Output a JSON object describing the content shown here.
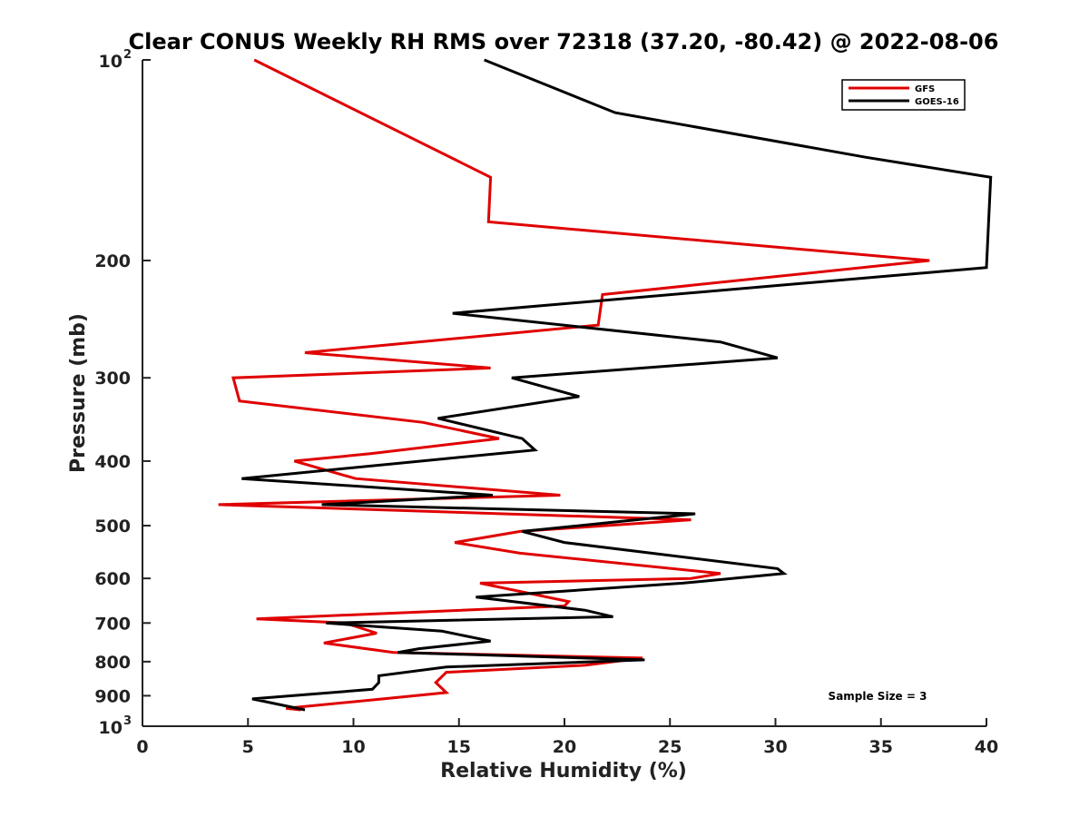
{
  "chart_data": {
    "type": "line",
    "title": "Clear CONUS Weekly RH RMS over 72318 (37.20, -80.42) @ 2022-08-06",
    "xlabel": "Relative Humidity (%)",
    "ylabel": "Pressure (mb)",
    "xlim": [
      0,
      40
    ],
    "ylim": [
      100,
      1000
    ],
    "y_scale": "log",
    "y_direction": "reversed",
    "grid": false,
    "legend_position": "top-right",
    "x_ticks": [
      "0",
      "5",
      "10",
      "15",
      "20",
      "25",
      "30",
      "35",
      "40"
    ],
    "y_ticks": [
      {
        "value": 100,
        "label": "10",
        "exp": "2"
      },
      {
        "value": 200,
        "label": "200",
        "exp": ""
      },
      {
        "value": 300,
        "label": "300",
        "exp": ""
      },
      {
        "value": 400,
        "label": "400",
        "exp": ""
      },
      {
        "value": 500,
        "label": "500",
        "exp": ""
      },
      {
        "value": 600,
        "label": "600",
        "exp": ""
      },
      {
        "value": 700,
        "label": "700",
        "exp": ""
      },
      {
        "value": 800,
        "label": "800",
        "exp": ""
      },
      {
        "value": 900,
        "label": "900",
        "exp": ""
      },
      {
        "value": 1000,
        "label": "10",
        "exp": "3"
      }
    ],
    "series": [
      {
        "name": "GFS",
        "color": "#e00000",
        "points": [
          [
            5.3,
            100
          ],
          [
            16.5,
            150
          ],
          [
            16.4,
            175
          ],
          [
            37.3,
            200
          ],
          [
            21.8,
            225
          ],
          [
            21.6,
            250
          ],
          [
            7.7,
            275
          ],
          [
            16.5,
            290
          ],
          [
            4.3,
            300
          ],
          [
            4.6,
            325
          ],
          [
            13.3,
            350
          ],
          [
            16.9,
            370
          ],
          [
            10.8,
            390
          ],
          [
            7.2,
            400
          ],
          [
            10.1,
            425
          ],
          [
            19.8,
            450
          ],
          [
            3.6,
            465
          ],
          [
            26.0,
            490
          ],
          [
            17.9,
            510
          ],
          [
            14.8,
            530
          ],
          [
            17.9,
            550
          ],
          [
            27.4,
            590
          ],
          [
            26.0,
            600
          ],
          [
            16.0,
            610
          ],
          [
            20.2,
            650
          ],
          [
            20.0,
            660
          ],
          [
            5.4,
            690
          ],
          [
            9.6,
            700
          ],
          [
            11.1,
            725
          ],
          [
            8.6,
            750
          ],
          [
            11.9,
            775
          ],
          [
            23.7,
            790
          ],
          [
            21.0,
            810
          ],
          [
            14.4,
            830
          ],
          [
            13.9,
            860
          ],
          [
            14.4,
            890
          ],
          [
            11.4,
            910
          ],
          [
            6.8,
            940
          ],
          [
            7.5,
            945
          ]
        ]
      },
      {
        "name": "GOES-16",
        "color": "#000000",
        "points": [
          [
            16.2,
            100
          ],
          [
            22.4,
            120
          ],
          [
            34.3,
            140
          ],
          [
            40.2,
            150
          ],
          [
            40.0,
            205
          ],
          [
            14.7,
            240
          ],
          [
            27.4,
            265
          ],
          [
            30.1,
            280
          ],
          [
            17.5,
            300
          ],
          [
            20.7,
            320
          ],
          [
            14.0,
            345
          ],
          [
            18.0,
            370
          ],
          [
            18.6,
            385
          ],
          [
            4.7,
            425
          ],
          [
            16.6,
            450
          ],
          [
            8.5,
            465
          ],
          [
            26.2,
            480
          ],
          [
            18.0,
            510
          ],
          [
            20.0,
            530
          ],
          [
            30.1,
            580
          ],
          [
            30.4,
            590
          ],
          [
            25.6,
            610
          ],
          [
            15.8,
            640
          ],
          [
            21.0,
            670
          ],
          [
            22.3,
            685
          ],
          [
            8.7,
            700
          ],
          [
            14.2,
            720
          ],
          [
            16.5,
            745
          ],
          [
            13.1,
            765
          ],
          [
            12.1,
            775
          ],
          [
            23.8,
            795
          ],
          [
            14.4,
            815
          ],
          [
            11.2,
            840
          ],
          [
            11.2,
            860
          ],
          [
            10.9,
            880
          ],
          [
            5.2,
            910
          ],
          [
            7.7,
            945
          ]
        ]
      }
    ],
    "annotations": [
      {
        "text": "Sample Size = 3"
      }
    ]
  }
}
